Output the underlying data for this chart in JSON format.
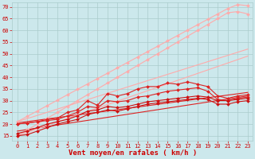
{
  "background_color": "#cce8ec",
  "grid_color": "#aacccc",
  "xlabel": "Vent moyen/en rafales ( km/h )",
  "ylabel_ticks": [
    15,
    20,
    25,
    30,
    35,
    40,
    45,
    50,
    55,
    60,
    65,
    70
  ],
  "x_ticks": [
    0,
    1,
    2,
    3,
    4,
    5,
    6,
    7,
    8,
    9,
    10,
    11,
    12,
    13,
    14,
    15,
    16,
    17,
    18,
    19,
    20,
    21,
    22,
    23
  ],
  "xlim": [
    -0.5,
    23.5
  ],
  "ylim": [
    13,
    72
  ],
  "lines": [
    {
      "x": [
        0,
        1,
        2,
        3,
        4,
        5,
        6,
        7,
        8,
        9,
        10,
        11,
        12,
        13,
        14,
        15,
        16,
        17,
        18,
        19,
        20,
        21,
        22,
        23
      ],
      "y": [
        21.0,
        23.3,
        25.6,
        27.9,
        30.2,
        32.5,
        34.8,
        37.1,
        39.4,
        41.7,
        44.0,
        46.3,
        48.6,
        50.9,
        53.2,
        55.5,
        57.8,
        60.1,
        62.4,
        64.7,
        67.0,
        69.3,
        71.0,
        70.5
      ],
      "color": "#ffaaaa",
      "marker": "D",
      "markersize": 2.0,
      "linewidth": 0.8,
      "zorder": 3
    },
    {
      "x": [
        0,
        1,
        2,
        3,
        4,
        5,
        6,
        7,
        8,
        9,
        10,
        11,
        12,
        13,
        14,
        15,
        16,
        17,
        18,
        19,
        20,
        21,
        22,
        23
      ],
      "y": [
        15.0,
        17.5,
        20.0,
        22.5,
        25.0,
        27.5,
        30.0,
        32.5,
        35.0,
        37.5,
        40.0,
        42.5,
        45.0,
        47.5,
        50.0,
        52.5,
        55.0,
        57.5,
        60.0,
        62.5,
        65.0,
        67.5,
        68.0,
        67.0
      ],
      "color": "#ffaaaa",
      "marker": "D",
      "markersize": 2.0,
      "linewidth": 0.8,
      "zorder": 3
    },
    {
      "x": [
        0,
        1,
        2,
        3,
        4,
        5,
        6,
        7,
        8,
        9,
        10,
        11,
        12,
        13,
        14,
        15,
        16,
        17,
        18,
        19,
        20,
        21,
        22,
        23
      ],
      "y": [
        20.0,
        20.5,
        21.0,
        22.0,
        22.5,
        25.0,
        26.0,
        30.0,
        28.0,
        33.0,
        32.0,
        33.0,
        35.0,
        36.0,
        36.0,
        37.5,
        37.0,
        38.0,
        37.0,
        36.0,
        32.0,
        31.0,
        32.0,
        32.5
      ],
      "color": "#dd2222",
      "marker": "D",
      "markersize": 2.0,
      "linewidth": 0.8,
      "zorder": 3
    },
    {
      "x": [
        0,
        1,
        2,
        3,
        4,
        5,
        6,
        7,
        8,
        9,
        10,
        11,
        12,
        13,
        14,
        15,
        16,
        17,
        18,
        19,
        20,
        21,
        22,
        23
      ],
      "y": [
        20.0,
        20.5,
        21.0,
        21.5,
        22.0,
        23.5,
        25.0,
        27.5,
        27.0,
        30.0,
        29.5,
        30.0,
        31.5,
        32.0,
        33.0,
        34.0,
        34.5,
        35.0,
        35.5,
        34.0,
        30.5,
        30.0,
        31.0,
        31.5
      ],
      "color": "#dd2222",
      "marker": "D",
      "markersize": 2.0,
      "linewidth": 0.8,
      "zorder": 3
    },
    {
      "x": [
        0,
        23
      ],
      "y": [
        20.5,
        33.5
      ],
      "color": "#dd2222",
      "marker": "None",
      "markersize": 0,
      "linewidth": 0.8,
      "zorder": 2
    },
    {
      "x": [
        0,
        23
      ],
      "y": [
        17.0,
        32.0
      ],
      "color": "#dd2222",
      "marker": "None",
      "markersize": 0,
      "linewidth": 0.8,
      "zorder": 2
    },
    {
      "x": [
        0,
        1,
        2,
        3,
        4,
        5,
        6,
        7,
        8,
        9,
        10,
        11,
        12,
        13,
        14,
        15,
        16,
        17,
        18,
        19,
        20,
        21,
        22,
        23
      ],
      "y": [
        16.0,
        17.0,
        18.5,
        20.0,
        21.0,
        22.0,
        23.5,
        25.5,
        26.0,
        27.5,
        27.0,
        27.5,
        28.5,
        29.5,
        30.0,
        30.5,
        31.0,
        31.5,
        32.0,
        31.5,
        30.0,
        30.0,
        30.5,
        31.0
      ],
      "color": "#cc1111",
      "marker": "D",
      "markersize": 2.0,
      "linewidth": 0.8,
      "zorder": 3
    },
    {
      "x": [
        0,
        1,
        2,
        3,
        4,
        5,
        6,
        7,
        8,
        9,
        10,
        11,
        12,
        13,
        14,
        15,
        16,
        17,
        18,
        19,
        20,
        21,
        22,
        23
      ],
      "y": [
        15.0,
        15.5,
        17.0,
        18.5,
        20.0,
        21.0,
        22.0,
        24.0,
        25.0,
        26.0,
        25.5,
        26.5,
        27.5,
        28.5,
        29.0,
        29.5,
        30.0,
        30.5,
        31.0,
        30.5,
        28.5,
        28.5,
        29.5,
        30.0
      ],
      "color": "#cc1111",
      "marker": "D",
      "markersize": 2.0,
      "linewidth": 0.8,
      "zorder": 3
    },
    {
      "x": [
        0,
        23
      ],
      "y": [
        21.0,
        52.0
      ],
      "color": "#ffaaaa",
      "marker": "None",
      "markersize": 0,
      "linewidth": 0.8,
      "zorder": 2
    },
    {
      "x": [
        0,
        23
      ],
      "y": [
        15.0,
        49.0
      ],
      "color": "#ffaaaa",
      "marker": "None",
      "markersize": 0,
      "linewidth": 0.8,
      "zorder": 2
    }
  ],
  "tick_fontsize": 5.0,
  "xlabel_fontsize": 6.5,
  "tick_color": "#cc0000",
  "label_color": "#cc0000"
}
